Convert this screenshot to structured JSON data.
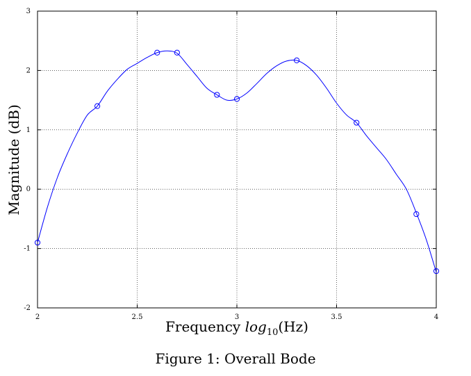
{
  "chart_data": {
    "type": "line",
    "xlabel": {
      "prefix": "Frequency ",
      "log": "log",
      "sub": "10",
      "suffix": "(Hz)"
    },
    "ylabel": "Magnitude (dB)",
    "xlim": [
      2,
      4
    ],
    "ylim": [
      -2,
      3
    ],
    "xticks": [
      2,
      2.5,
      3,
      3.5,
      4
    ],
    "xtick_labels": [
      "2",
      "2.5",
      "3",
      "3.5",
      "4"
    ],
    "yticks": [
      -2,
      -1,
      0,
      1,
      2,
      3
    ],
    "ytick_labels": [
      "-2",
      "-1",
      "0",
      "1",
      "2",
      "3"
    ],
    "grid": true,
    "line_color": "#0000ff",
    "series": [
      {
        "curve": {
          "x": [
            2.0,
            2.05,
            2.1,
            2.15,
            2.2,
            2.25,
            2.3,
            2.35,
            2.4,
            2.45,
            2.5,
            2.55,
            2.6,
            2.65,
            2.7,
            2.75,
            2.8,
            2.85,
            2.9,
            2.95,
            3.0,
            3.05,
            3.1,
            3.15,
            3.2,
            3.25,
            3.3,
            3.35,
            3.4,
            3.45,
            3.5,
            3.55,
            3.6,
            3.65,
            3.7,
            3.75,
            3.8,
            3.85,
            3.9,
            3.95,
            4.0
          ],
          "y": [
            -0.9,
            -0.3,
            0.2,
            0.6,
            0.95,
            1.25,
            1.4,
            1.65,
            1.85,
            2.02,
            2.12,
            2.22,
            2.3,
            2.33,
            2.29,
            2.1,
            1.9,
            1.7,
            1.59,
            1.5,
            1.52,
            1.62,
            1.78,
            1.95,
            2.08,
            2.16,
            2.17,
            2.08,
            1.92,
            1.7,
            1.45,
            1.25,
            1.12,
            0.9,
            0.7,
            0.5,
            0.25,
            0.0,
            -0.4,
            -0.85,
            -1.4
          ]
        },
        "markers": {
          "x": [
            2.0,
            2.3,
            2.6,
            2.7,
            2.9,
            3.0,
            3.3,
            3.6,
            3.9,
            4.0
          ],
          "y": [
            -0.9,
            1.4,
            2.3,
            2.3,
            1.59,
            1.52,
            2.17,
            1.12,
            -0.42,
            -1.38
          ]
        }
      }
    ]
  },
  "caption": "Figure 1:  Overall Bode"
}
